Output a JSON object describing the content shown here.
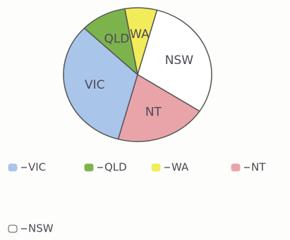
{
  "chart_data": {
    "type": "pie",
    "categories": [
      "WA",
      "NSW",
      "NT",
      "VIC",
      "QLD"
    ],
    "values": [
      7,
      30,
      20,
      33,
      10
    ],
    "colors": [
      "#f3ec5a",
      "#ffffff",
      "#e9a4aa",
      "#aac5ea",
      "#7db34c"
    ]
  }
}
